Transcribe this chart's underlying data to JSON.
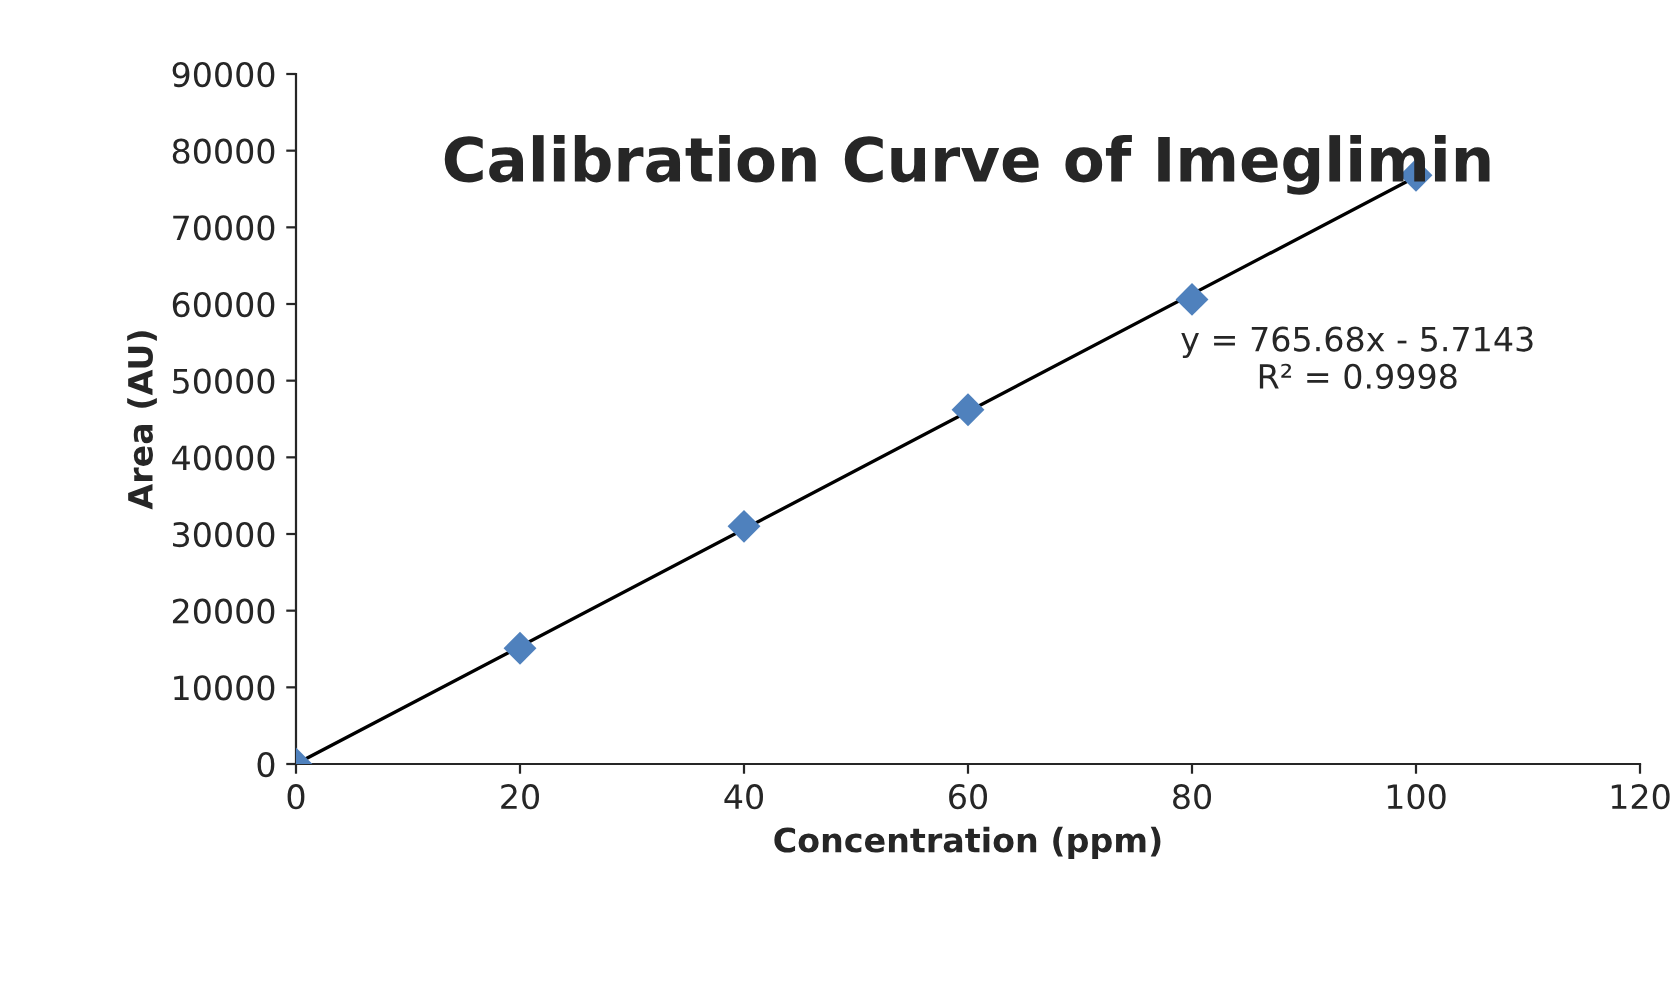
{
  "chart_data": {
    "type": "scatter",
    "title": "Calibration Curve of Imeglimin",
    "xlabel": "Concentration (ppm)",
    "ylabel": "Area (AU)",
    "x": [
      0,
      20,
      40,
      60,
      80,
      100
    ],
    "series": [
      {
        "color": "#4f81bd",
        "marker": "diamond",
        "values": [
          0,
          15100,
          31000,
          46200,
          60600,
          76800
        ]
      },
      {
        "type": "line",
        "color": "#000000",
        "marker": "none",
        "line_style": "solid",
        "x": [
          0,
          100
        ],
        "values": [
          0,
          76600
        ]
      }
    ],
    "annotations": [
      "y = 765.68x - 5.7143\nR² = 0.9998"
    ],
    "xlim": [
      0,
      120
    ],
    "xticks": [
      0,
      20,
      40,
      60,
      80,
      100,
      120
    ],
    "ylim": [
      0,
      90000
    ],
    "yticks": [
      0,
      10000,
      20000,
      30000,
      40000,
      50000,
      60000,
      70000,
      80000,
      90000
    ],
    "grid": false,
    "legend": false
  }
}
